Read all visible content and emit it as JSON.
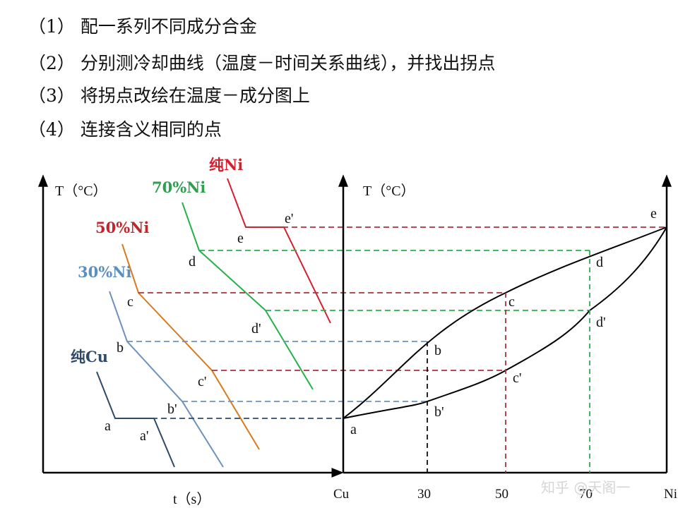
{
  "steps": [
    "（1） 配一系列不同成分合金",
    "（2） 分别测冷却曲线（温度－时间关系曲线），并找出拐点",
    "（3） 将拐点改绘在温度－成分图上",
    "（4） 连接含义相同的点"
  ],
  "left_plot": {
    "y_label": "T（°C）",
    "x_label": "t（s）",
    "curves": [
      {
        "label": "纯Cu",
        "color": "#2f4f6f"
      },
      {
        "label": "30%Ni",
        "color": "#5b8fc2"
      },
      {
        "label": "50%Ni",
        "color": "#c0272d"
      },
      {
        "label": "70%Ni",
        "color": "#2e9e4f"
      },
      {
        "label": "纯Ni",
        "color": "#d81e2d"
      }
    ],
    "curve_colors_actual": {
      "pure_cu": "#2f4a68",
      "ni30": "#6b93bd",
      "ni50": "#d97a1c",
      "ni70": "#24b24b",
      "pure_ni": "#d81e2d"
    },
    "point_labels": [
      "a",
      "a'",
      "b",
      "b'",
      "c",
      "c'",
      "d",
      "d'",
      "e",
      "e'"
    ]
  },
  "right_plot": {
    "y_label": "T（°C）",
    "x_ticks": [
      "Cu",
      "30",
      "50",
      "70",
      "Ni"
    ],
    "point_labels": [
      "a",
      "b",
      "b'",
      "c",
      "c'",
      "d",
      "d'",
      "e"
    ]
  },
  "watermark": "知乎 @天阁一"
}
